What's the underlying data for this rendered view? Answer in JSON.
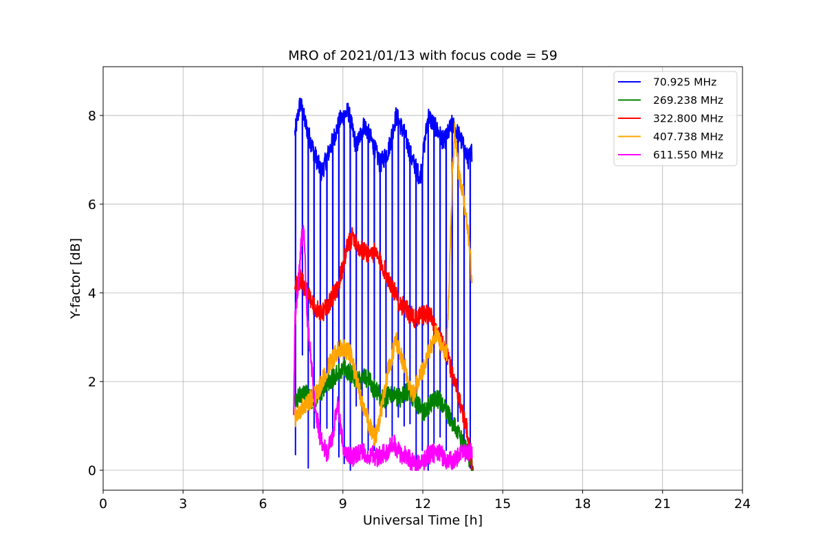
{
  "chart_data": {
    "type": "line",
    "title": "MRO of 2021/01/13 with focus code = 59",
    "xlabel": "Universal Time [h]",
    "ylabel": "Y-factor [dB]",
    "xlim": [
      0,
      24
    ],
    "ylim": [
      -0.45,
      9.1
    ],
    "xticks": [
      0,
      3,
      6,
      9,
      12,
      15,
      18,
      21,
      24
    ],
    "yticks": [
      0,
      2,
      4,
      6,
      8
    ],
    "grid": true,
    "legend_position": "top-right",
    "series": [
      {
        "name": " 70.925 MHz",
        "color": "#0000ff",
        "baseline": [
          [
            7.2,
            7.6
          ],
          [
            7.4,
            8.3
          ],
          [
            7.6,
            7.8
          ],
          [
            7.9,
            7.2
          ],
          [
            8.2,
            6.7
          ],
          [
            8.6,
            7.4
          ],
          [
            8.9,
            7.9
          ],
          [
            9.2,
            8.1
          ],
          [
            9.5,
            7.3
          ],
          [
            9.8,
            7.8
          ],
          [
            10.1,
            7.4
          ],
          [
            10.4,
            6.9
          ],
          [
            10.7,
            7.2
          ],
          [
            11.0,
            8.0
          ],
          [
            11.3,
            7.6
          ],
          [
            11.6,
            7.0
          ],
          [
            11.9,
            6.6
          ],
          [
            12.2,
            8.0
          ],
          [
            12.5,
            7.7
          ],
          [
            12.8,
            7.4
          ],
          [
            13.1,
            7.8
          ],
          [
            13.4,
            7.5
          ],
          [
            13.7,
            7.0
          ],
          [
            13.85,
            7.2
          ]
        ],
        "dips": [
          [
            7.22,
            0.35
          ],
          [
            7.48,
            2.6
          ],
          [
            7.7,
            0.05
          ],
          [
            7.92,
            0.95
          ],
          [
            8.15,
            0.75
          ],
          [
            8.4,
            0.95
          ],
          [
            8.62,
            0.7
          ],
          [
            8.85,
            0.3
          ],
          [
            9.05,
            0.15
          ],
          [
            9.28,
            0.0
          ],
          [
            9.5,
            1.45
          ],
          [
            9.72,
            0.55
          ],
          [
            9.95,
            0.45
          ],
          [
            10.18,
            0.45
          ],
          [
            10.4,
            1.45
          ],
          [
            10.62,
            1.2
          ],
          [
            10.85,
            0.6
          ],
          [
            11.08,
            1.2
          ],
          [
            11.3,
            1.0
          ],
          [
            11.52,
            1.05
          ],
          [
            11.75,
            0.0
          ],
          [
            11.98,
            0.45
          ],
          [
            12.2,
            0.0
          ],
          [
            12.42,
            0.6
          ],
          [
            12.65,
            0.75
          ],
          [
            12.88,
            0.45
          ],
          [
            13.1,
            1.0
          ],
          [
            13.32,
            1.1
          ],
          [
            13.55,
            0.55
          ],
          [
            13.78,
            0.05
          ]
        ]
      },
      {
        "name": "269.238 MHz",
        "color": "#008000",
        "baseline": [
          [
            7.2,
            1.5
          ],
          [
            7.5,
            1.8
          ],
          [
            7.8,
            1.6
          ],
          [
            8.1,
            1.7
          ],
          [
            8.4,
            2.0
          ],
          [
            8.7,
            2.1
          ],
          [
            9.0,
            2.3
          ],
          [
            9.3,
            2.2
          ],
          [
            9.6,
            2.0
          ],
          [
            9.9,
            2.1
          ],
          [
            10.2,
            1.8
          ],
          [
            10.5,
            1.6
          ],
          [
            10.8,
            1.7
          ],
          [
            11.1,
            1.6
          ],
          [
            11.4,
            1.8
          ],
          [
            11.7,
            1.6
          ],
          [
            12.0,
            1.3
          ],
          [
            12.3,
            1.5
          ],
          [
            12.6,
            1.6
          ],
          [
            12.9,
            1.3
          ],
          [
            13.2,
            1.0
          ],
          [
            13.5,
            0.6
          ],
          [
            13.8,
            0.2
          ],
          [
            13.9,
            0.05
          ]
        ],
        "dips": []
      },
      {
        "name": "322.800 MHz",
        "color": "#ff0000",
        "baseline": [
          [
            7.2,
            4.2
          ],
          [
            7.4,
            4.3
          ],
          [
            7.6,
            4.1
          ],
          [
            7.9,
            3.7
          ],
          [
            8.2,
            3.5
          ],
          [
            8.5,
            3.8
          ],
          [
            8.8,
            4.1
          ],
          [
            9.0,
            4.6
          ],
          [
            9.2,
            5.1
          ],
          [
            9.4,
            5.3
          ],
          [
            9.6,
            5.0
          ],
          [
            9.9,
            4.9
          ],
          [
            10.2,
            4.9
          ],
          [
            10.5,
            4.6
          ],
          [
            10.8,
            4.2
          ],
          [
            11.1,
            3.8
          ],
          [
            11.4,
            3.6
          ],
          [
            11.7,
            3.4
          ],
          [
            12.0,
            3.5
          ],
          [
            12.3,
            3.5
          ],
          [
            12.6,
            3.0
          ],
          [
            12.9,
            2.6
          ],
          [
            13.1,
            2.2
          ],
          [
            13.3,
            1.8
          ],
          [
            13.5,
            1.3
          ],
          [
            13.7,
            0.8
          ],
          [
            13.85,
            0.0
          ]
        ],
        "dips": []
      },
      {
        "name": "407.738 MHz",
        "color": "#ffa500",
        "baseline": [
          [
            7.2,
            1.2
          ],
          [
            7.5,
            1.4
          ],
          [
            7.8,
            1.6
          ],
          [
            8.1,
            1.8
          ],
          [
            8.4,
            2.3
          ],
          [
            8.7,
            2.6
          ],
          [
            9.0,
            2.8
          ],
          [
            9.3,
            2.6
          ],
          [
            9.6,
            1.8
          ],
          [
            9.9,
            1.2
          ],
          [
            10.2,
            0.7
          ],
          [
            10.4,
            1.2
          ],
          [
            10.7,
            2.3
          ],
          [
            11.0,
            2.9
          ],
          [
            11.3,
            2.4
          ],
          [
            11.6,
            1.7
          ],
          [
            11.9,
            2.1
          ],
          [
            12.2,
            2.6
          ],
          [
            12.5,
            3.1
          ],
          [
            12.7,
            2.8
          ],
          [
            12.9,
            2.6
          ],
          [
            13.1,
            6.5
          ],
          [
            13.2,
            7.7
          ],
          [
            13.35,
            6.7
          ],
          [
            13.5,
            6.3
          ],
          [
            13.7,
            5.3
          ],
          [
            13.85,
            4.3
          ]
        ],
        "dips": []
      },
      {
        "name": "611.550 MHz",
        "color": "#ff00ff",
        "baseline": [
          [
            7.15,
            1.1
          ],
          [
            7.2,
            3.4
          ],
          [
            7.3,
            4.0
          ],
          [
            7.45,
            5.2
          ],
          [
            7.55,
            5.4
          ],
          [
            7.65,
            3.5
          ],
          [
            7.8,
            2.5
          ],
          [
            7.95,
            1.5
          ],
          [
            8.15,
            0.7
          ],
          [
            8.4,
            0.4
          ],
          [
            8.6,
            0.7
          ],
          [
            8.8,
            1.5
          ],
          [
            8.95,
            0.8
          ],
          [
            9.1,
            0.3
          ],
          [
            9.4,
            0.3
          ],
          [
            9.7,
            0.4
          ],
          [
            10.0,
            0.35
          ],
          [
            10.3,
            0.3
          ],
          [
            10.6,
            0.4
          ],
          [
            10.9,
            0.6
          ],
          [
            11.1,
            0.4
          ],
          [
            11.4,
            0.3
          ],
          [
            11.7,
            0.15
          ],
          [
            11.9,
            0.1
          ],
          [
            12.2,
            0.35
          ],
          [
            12.5,
            0.4
          ],
          [
            12.8,
            0.3
          ],
          [
            13.0,
            0.2
          ],
          [
            13.2,
            0.25
          ],
          [
            13.5,
            0.4
          ],
          [
            13.85,
            0.45
          ]
        ],
        "dips": []
      }
    ]
  }
}
